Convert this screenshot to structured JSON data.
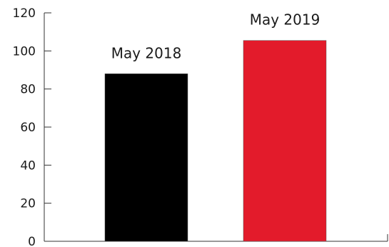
{
  "chart_data": {
    "type": "bar",
    "categories": [
      "May 2018",
      "May 2019"
    ],
    "values": [
      88,
      105.5
    ],
    "colors": [
      "#000000",
      "#e31b2b"
    ],
    "ylim": [
      0,
      120
    ],
    "yticks": [
      0,
      20,
      40,
      60,
      80,
      100,
      120
    ],
    "grid": false,
    "legend": "none",
    "title": "",
    "xlabel": "",
    "ylabel": ""
  }
}
